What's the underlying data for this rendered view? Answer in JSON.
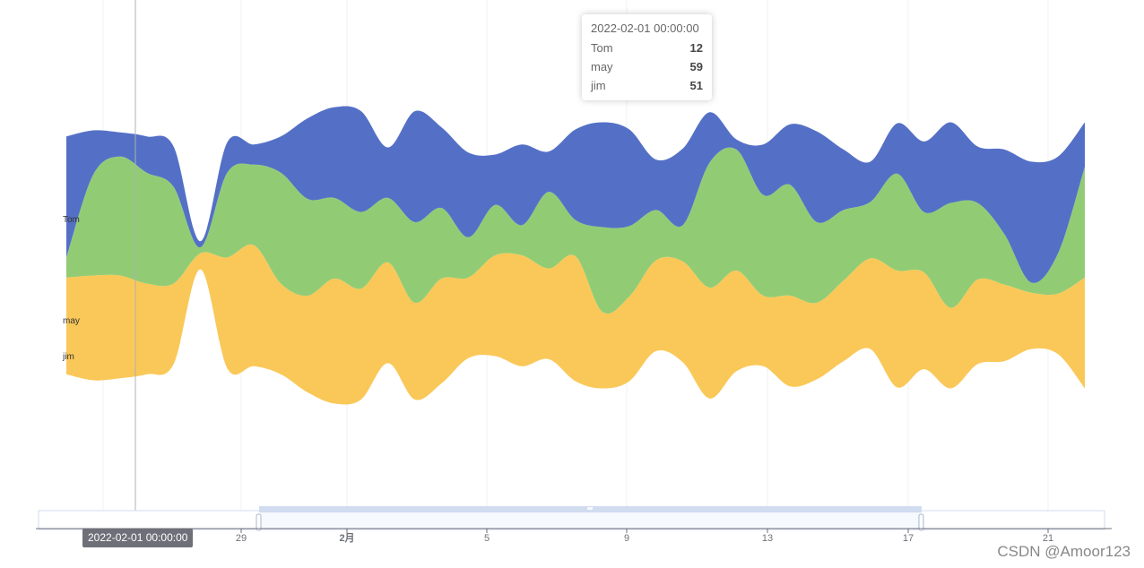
{
  "chart_data": {
    "type": "themeRiver",
    "series": [
      {
        "name": "jim",
        "color": "#fac858",
        "values": [
          48,
          52,
          51,
          45,
          40,
          8,
          55,
          60,
          45,
          48,
          62,
          55,
          50,
          48,
          52,
          40,
          50,
          55,
          45,
          62,
          38,
          42,
          45,
          50,
          55,
          50,
          35,
          45,
          38,
          40,
          45,
          58,
          48,
          40,
          42,
          38,
          28,
          30,
          55
        ]
      },
      {
        "name": "may",
        "color": "#91cc75",
        "values": [
          10,
          50,
          59,
          55,
          48,
          3,
          42,
          40,
          55,
          48,
          40,
          38,
          32,
          40,
          35,
          20,
          25,
          15,
          38,
          18,
          42,
          35,
          25,
          18,
          62,
          60,
          50,
          55,
          40,
          35,
          28,
          48,
          30,
          52,
          38,
          25,
          5,
          20,
          55
        ]
      },
      {
        "name": "Tom",
        "color": "#5470c6",
        "values": [
          60,
          22,
          12,
          18,
          20,
          3,
          15,
          10,
          18,
          40,
          45,
          50,
          25,
          55,
          40,
          42,
          25,
          40,
          20,
          45,
          52,
          48,
          25,
          38,
          25,
          5,
          25,
          30,
          45,
          30,
          20,
          25,
          35,
          40,
          28,
          42,
          60,
          48,
          22
        ]
      }
    ],
    "x_ticks": [
      "29",
      "2月",
      "5",
      "9",
      "13",
      "17",
      "21"
    ],
    "legend_labels": [
      "Tom",
      "may",
      "jim"
    ]
  },
  "tooltip": {
    "title": "2022-02-01 00:00:00",
    "rows": [
      {
        "name": "Tom",
        "value": "12"
      },
      {
        "name": "may",
        "value": "59"
      },
      {
        "name": "jim",
        "value": "51"
      }
    ]
  },
  "axis_pointer_label": "2022-02-01 00:00:00",
  "watermark": "CSDN @Amoor123"
}
